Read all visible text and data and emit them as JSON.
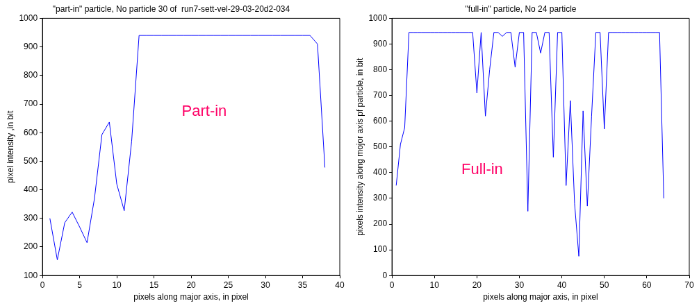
{
  "chart_data": [
    {
      "type": "line",
      "title": "\"part-in\" particle, No particle 30 of  run7-sett-vel-29-03-20d2-034",
      "xlabel": "pixels along major axis, in pixel",
      "ylabel": "pixel intensity ,in bit",
      "x": [
        1,
        2,
        3,
        4,
        5,
        6,
        7,
        8,
        9,
        10,
        11,
        12,
        13,
        14,
        15,
        16,
        17,
        18,
        19,
        20,
        21,
        22,
        23,
        24,
        25,
        26,
        27,
        28,
        29,
        30,
        31,
        32,
        33,
        34,
        35,
        36,
        37,
        38
      ],
      "series": [
        {
          "color": "#0000ff",
          "values": [
            300,
            155,
            285,
            322,
            270,
            215,
            370,
            593,
            637,
            420,
            327,
            570,
            940,
            940,
            940,
            940,
            940,
            940,
            940,
            940,
            940,
            940,
            940,
            940,
            940,
            940,
            940,
            940,
            940,
            940,
            940,
            940,
            940,
            940,
            940,
            940,
            910,
            478
          ]
        }
      ],
      "xlim": [
        0,
        40
      ],
      "xticks": [
        0,
        5,
        10,
        15,
        20,
        25,
        30,
        35,
        40
      ],
      "ylim": [
        100,
        1000
      ],
      "yticks": [
        100,
        200,
        300,
        400,
        500,
        600,
        700,
        800,
        900,
        1000
      ],
      "annotations": [
        "Part-in"
      ],
      "grid": false,
      "legend": false,
      "marker": "none",
      "line_style": "solid"
    },
    {
      "type": "line",
      "title": "\"full-in\" particle, No 24 particle",
      "xlabel": "pixels along major axis, in pixel",
      "ylabel": "pixels intensity along mojor axis pf particle, in bit",
      "x": [
        1,
        2,
        3,
        4,
        5,
        6,
        7,
        8,
        9,
        10,
        11,
        12,
        13,
        14,
        15,
        16,
        17,
        18,
        19,
        20,
        21,
        22,
        23,
        24,
        25,
        26,
        27,
        28,
        29,
        30,
        31,
        32,
        33,
        34,
        35,
        36,
        37,
        38,
        39,
        40,
        41,
        42,
        43,
        44,
        45,
        46,
        47,
        48,
        49,
        50,
        51,
        52,
        53,
        54,
        55,
        56,
        57,
        58,
        59,
        60,
        61,
        62,
        63,
        64
      ],
      "series": [
        {
          "color": "#0000ff",
          "values": [
            350,
            510,
            575,
            945,
            945,
            945,
            945,
            945,
            945,
            945,
            945,
            945,
            945,
            945,
            945,
            945,
            945,
            945,
            945,
            710,
            945,
            620,
            800,
            945,
            945,
            930,
            945,
            945,
            810,
            945,
            945,
            250,
            945,
            945,
            865,
            945,
            945,
            460,
            945,
            945,
            350,
            680,
            280,
            75,
            640,
            270,
            620,
            945,
            945,
            570,
            945,
            945,
            945,
            945,
            945,
            945,
            945,
            945,
            945,
            945,
            945,
            945,
            945,
            300
          ]
        }
      ],
      "xlim": [
        0,
        70
      ],
      "xticks": [
        0,
        10,
        20,
        30,
        40,
        50,
        60,
        70
      ],
      "ylim": [
        0,
        1000
      ],
      "yticks": [
        0,
        100,
        200,
        300,
        400,
        500,
        600,
        700,
        800,
        900,
        1000
      ],
      "annotations": [
        "Full-in"
      ],
      "grid": false,
      "legend": false,
      "marker": "none",
      "line_style": "solid"
    }
  ]
}
